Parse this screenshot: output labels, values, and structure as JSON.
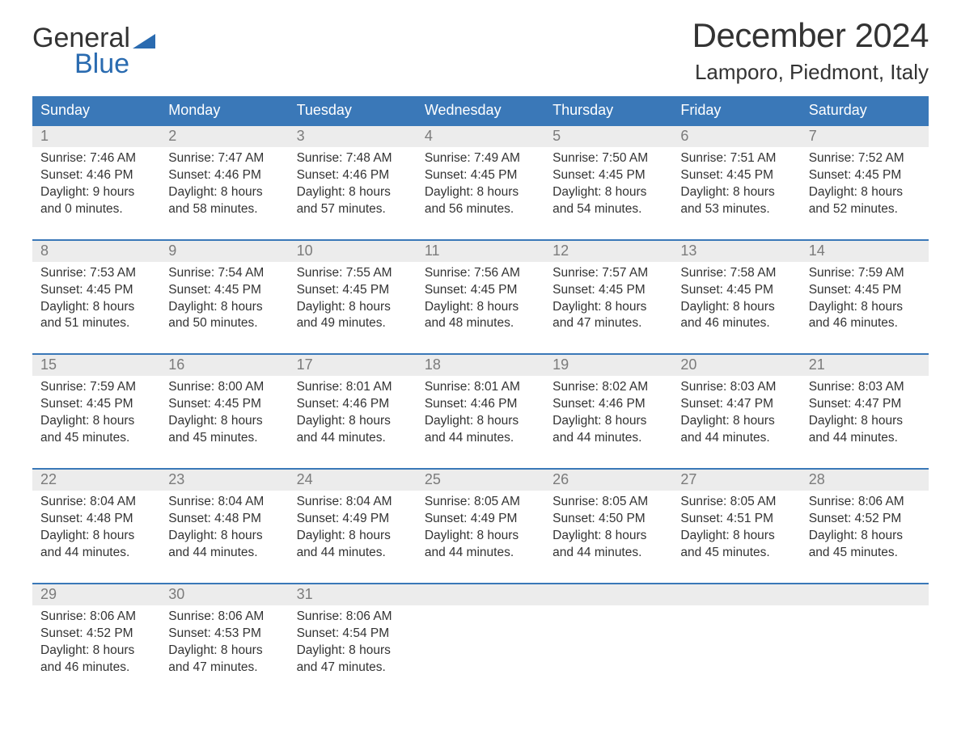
{
  "brand": {
    "line1": "General",
    "line2": "Blue"
  },
  "title": "December 2024",
  "location": "Lamporo, Piedmont, Italy",
  "colors": {
    "header_blue": "#3a78b8",
    "brand_blue": "#2a6bb0",
    "daynum_bg": "#ececec",
    "daynum_text": "#7b7b7b",
    "body_text": "#333333",
    "background": "#ffffff"
  },
  "typography": {
    "title_fontsize": 42,
    "location_fontsize": 26,
    "dow_fontsize": 18,
    "daynum_fontsize": 18,
    "cell_fontsize": 15.5,
    "logo_fontsize": 34
  },
  "dow": [
    "Sunday",
    "Monday",
    "Tuesday",
    "Wednesday",
    "Thursday",
    "Friday",
    "Saturday"
  ],
  "weeks": [
    {
      "days": [
        {
          "n": "1",
          "sunrise": "Sunrise: 7:46 AM",
          "sunset": "Sunset: 4:46 PM",
          "daylight": "Daylight: 9 hours and 0 minutes."
        },
        {
          "n": "2",
          "sunrise": "Sunrise: 7:47 AM",
          "sunset": "Sunset: 4:46 PM",
          "daylight": "Daylight: 8 hours and 58 minutes."
        },
        {
          "n": "3",
          "sunrise": "Sunrise: 7:48 AM",
          "sunset": "Sunset: 4:46 PM",
          "daylight": "Daylight: 8 hours and 57 minutes."
        },
        {
          "n": "4",
          "sunrise": "Sunrise: 7:49 AM",
          "sunset": "Sunset: 4:45 PM",
          "daylight": "Daylight: 8 hours and 56 minutes."
        },
        {
          "n": "5",
          "sunrise": "Sunrise: 7:50 AM",
          "sunset": "Sunset: 4:45 PM",
          "daylight": "Daylight: 8 hours and 54 minutes."
        },
        {
          "n": "6",
          "sunrise": "Sunrise: 7:51 AM",
          "sunset": "Sunset: 4:45 PM",
          "daylight": "Daylight: 8 hours and 53 minutes."
        },
        {
          "n": "7",
          "sunrise": "Sunrise: 7:52 AM",
          "sunset": "Sunset: 4:45 PM",
          "daylight": "Daylight: 8 hours and 52 minutes."
        }
      ]
    },
    {
      "days": [
        {
          "n": "8",
          "sunrise": "Sunrise: 7:53 AM",
          "sunset": "Sunset: 4:45 PM",
          "daylight": "Daylight: 8 hours and 51 minutes."
        },
        {
          "n": "9",
          "sunrise": "Sunrise: 7:54 AM",
          "sunset": "Sunset: 4:45 PM",
          "daylight": "Daylight: 8 hours and 50 minutes."
        },
        {
          "n": "10",
          "sunrise": "Sunrise: 7:55 AM",
          "sunset": "Sunset: 4:45 PM",
          "daylight": "Daylight: 8 hours and 49 minutes."
        },
        {
          "n": "11",
          "sunrise": "Sunrise: 7:56 AM",
          "sunset": "Sunset: 4:45 PM",
          "daylight": "Daylight: 8 hours and 48 minutes."
        },
        {
          "n": "12",
          "sunrise": "Sunrise: 7:57 AM",
          "sunset": "Sunset: 4:45 PM",
          "daylight": "Daylight: 8 hours and 47 minutes."
        },
        {
          "n": "13",
          "sunrise": "Sunrise: 7:58 AM",
          "sunset": "Sunset: 4:45 PM",
          "daylight": "Daylight: 8 hours and 46 minutes."
        },
        {
          "n": "14",
          "sunrise": "Sunrise: 7:59 AM",
          "sunset": "Sunset: 4:45 PM",
          "daylight": "Daylight: 8 hours and 46 minutes."
        }
      ]
    },
    {
      "days": [
        {
          "n": "15",
          "sunrise": "Sunrise: 7:59 AM",
          "sunset": "Sunset: 4:45 PM",
          "daylight": "Daylight: 8 hours and 45 minutes."
        },
        {
          "n": "16",
          "sunrise": "Sunrise: 8:00 AM",
          "sunset": "Sunset: 4:45 PM",
          "daylight": "Daylight: 8 hours and 45 minutes."
        },
        {
          "n": "17",
          "sunrise": "Sunrise: 8:01 AM",
          "sunset": "Sunset: 4:46 PM",
          "daylight": "Daylight: 8 hours and 44 minutes."
        },
        {
          "n": "18",
          "sunrise": "Sunrise: 8:01 AM",
          "sunset": "Sunset: 4:46 PM",
          "daylight": "Daylight: 8 hours and 44 minutes."
        },
        {
          "n": "19",
          "sunrise": "Sunrise: 8:02 AM",
          "sunset": "Sunset: 4:46 PM",
          "daylight": "Daylight: 8 hours and 44 minutes."
        },
        {
          "n": "20",
          "sunrise": "Sunrise: 8:03 AM",
          "sunset": "Sunset: 4:47 PM",
          "daylight": "Daylight: 8 hours and 44 minutes."
        },
        {
          "n": "21",
          "sunrise": "Sunrise: 8:03 AM",
          "sunset": "Sunset: 4:47 PM",
          "daylight": "Daylight: 8 hours and 44 minutes."
        }
      ]
    },
    {
      "days": [
        {
          "n": "22",
          "sunrise": "Sunrise: 8:04 AM",
          "sunset": "Sunset: 4:48 PM",
          "daylight": "Daylight: 8 hours and 44 minutes."
        },
        {
          "n": "23",
          "sunrise": "Sunrise: 8:04 AM",
          "sunset": "Sunset: 4:48 PM",
          "daylight": "Daylight: 8 hours and 44 minutes."
        },
        {
          "n": "24",
          "sunrise": "Sunrise: 8:04 AM",
          "sunset": "Sunset: 4:49 PM",
          "daylight": "Daylight: 8 hours and 44 minutes."
        },
        {
          "n": "25",
          "sunrise": "Sunrise: 8:05 AM",
          "sunset": "Sunset: 4:49 PM",
          "daylight": "Daylight: 8 hours and 44 minutes."
        },
        {
          "n": "26",
          "sunrise": "Sunrise: 8:05 AM",
          "sunset": "Sunset: 4:50 PM",
          "daylight": "Daylight: 8 hours and 44 minutes."
        },
        {
          "n": "27",
          "sunrise": "Sunrise: 8:05 AM",
          "sunset": "Sunset: 4:51 PM",
          "daylight": "Daylight: 8 hours and 45 minutes."
        },
        {
          "n": "28",
          "sunrise": "Sunrise: 8:06 AM",
          "sunset": "Sunset: 4:52 PM",
          "daylight": "Daylight: 8 hours and 45 minutes."
        }
      ]
    },
    {
      "days": [
        {
          "n": "29",
          "sunrise": "Sunrise: 8:06 AM",
          "sunset": "Sunset: 4:52 PM",
          "daylight": "Daylight: 8 hours and 46 minutes."
        },
        {
          "n": "30",
          "sunrise": "Sunrise: 8:06 AM",
          "sunset": "Sunset: 4:53 PM",
          "daylight": "Daylight: 8 hours and 47 minutes."
        },
        {
          "n": "31",
          "sunrise": "Sunrise: 8:06 AM",
          "sunset": "Sunset: 4:54 PM",
          "daylight": "Daylight: 8 hours and 47 minutes."
        },
        null,
        null,
        null,
        null
      ]
    }
  ]
}
